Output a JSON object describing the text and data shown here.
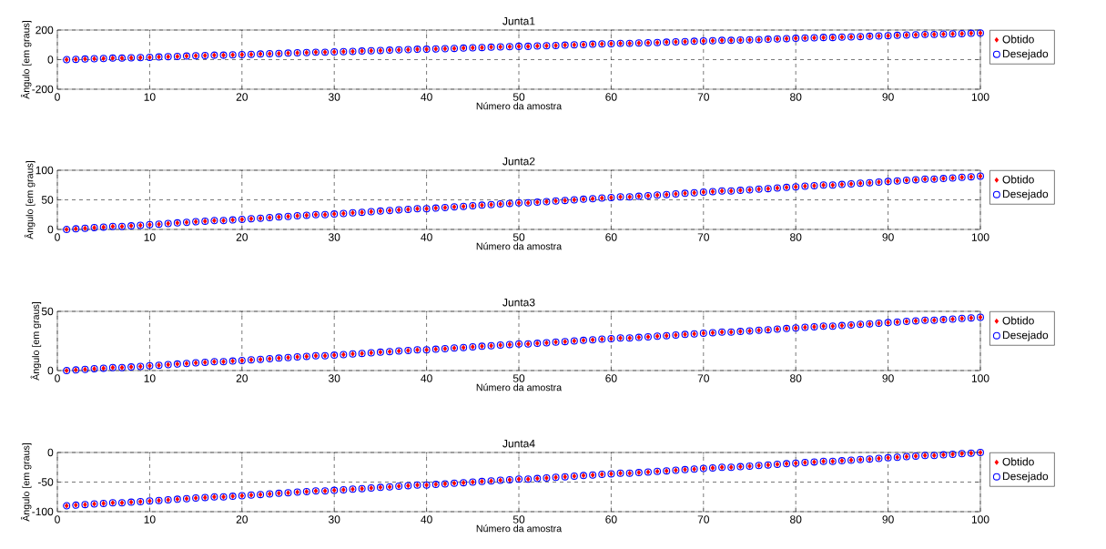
{
  "chart_data": [
    {
      "type": "scatter",
      "title": "Junta1",
      "xlabel": "Número da amostra",
      "ylabel": "Ângulo [em graus]",
      "xlim": [
        0,
        100
      ],
      "xticks": [
        0,
        10,
        20,
        30,
        40,
        50,
        60,
        70,
        80,
        90,
        100
      ],
      "ylim": [
        -200,
        200
      ],
      "yticks": [
        -200,
        0,
        200
      ],
      "grid": true,
      "legend": "right",
      "x": [
        1,
        2,
        3,
        4,
        5,
        6,
        7,
        8,
        9,
        10,
        11,
        12,
        13,
        14,
        15,
        16,
        17,
        18,
        19,
        20,
        21,
        22,
        23,
        24,
        25,
        26,
        27,
        28,
        29,
        30,
        31,
        32,
        33,
        34,
        35,
        36,
        37,
        38,
        39,
        40,
        41,
        42,
        43,
        44,
        45,
        46,
        47,
        48,
        49,
        50,
        51,
        52,
        53,
        54,
        55,
        56,
        57,
        58,
        59,
        60,
        61,
        62,
        63,
        64,
        65,
        66,
        67,
        68,
        69,
        70,
        71,
        72,
        73,
        74,
        75,
        76,
        77,
        78,
        79,
        80,
        81,
        82,
        83,
        84,
        85,
        86,
        87,
        88,
        89,
        90,
        91,
        92,
        93,
        94,
        95,
        96,
        97,
        98,
        99,
        100
      ],
      "series": [
        {
          "name": "Obtido",
          "color": "#ff0000",
          "marker": "diamond",
          "values": [
            0,
            2,
            4,
            6,
            8,
            10,
            10,
            12,
            14,
            16,
            18,
            20,
            22,
            24,
            26,
            28,
            30,
            30,
            32,
            34,
            36,
            38,
            40,
            42,
            44,
            46,
            48,
            50,
            50,
            52,
            54,
            56,
            58,
            60,
            62,
            64,
            66,
            68,
            70,
            70,
            72,
            74,
            76,
            78,
            80,
            82,
            84,
            86,
            88,
            90,
            90,
            92,
            94,
            96,
            98,
            100,
            102,
            104,
            106,
            108,
            110,
            110,
            112,
            114,
            116,
            118,
            120,
            122,
            124,
            126,
            128,
            130,
            130,
            132,
            134,
            136,
            138,
            140,
            142,
            144,
            146,
            148,
            150,
            150,
            152,
            154,
            156,
            158,
            160,
            162,
            164,
            166,
            168,
            170,
            170,
            172,
            174,
            176,
            178,
            180
          ]
        },
        {
          "name": "Desejado",
          "color": "#0000ff",
          "marker": "circle",
          "values": [
            0,
            2,
            4,
            6,
            8,
            10,
            10,
            12,
            14,
            16,
            18,
            20,
            22,
            24,
            26,
            28,
            30,
            30,
            32,
            34,
            36,
            38,
            40,
            42,
            44,
            46,
            48,
            50,
            50,
            52,
            54,
            56,
            58,
            60,
            62,
            64,
            66,
            68,
            70,
            70,
            72,
            74,
            76,
            78,
            80,
            82,
            84,
            86,
            88,
            90,
            90,
            92,
            94,
            96,
            98,
            100,
            102,
            104,
            106,
            108,
            110,
            110,
            112,
            114,
            116,
            118,
            120,
            122,
            124,
            126,
            128,
            130,
            130,
            132,
            134,
            136,
            138,
            140,
            142,
            144,
            146,
            148,
            150,
            150,
            152,
            154,
            156,
            158,
            160,
            162,
            164,
            166,
            168,
            170,
            170,
            172,
            174,
            176,
            178,
            180
          ]
        }
      ]
    },
    {
      "type": "scatter",
      "title": "Junta2",
      "xlabel": "Número da amostra",
      "ylabel": "Ângulo [em graus]",
      "xlim": [
        0,
        100
      ],
      "xticks": [
        0,
        10,
        20,
        30,
        40,
        50,
        60,
        70,
        80,
        90,
        100
      ],
      "ylim": [
        0,
        100
      ],
      "yticks": [
        0,
        50,
        100
      ],
      "grid": true,
      "legend": "right",
      "x": [
        1,
        2,
        3,
        4,
        5,
        6,
        7,
        8,
        9,
        10,
        11,
        12,
        13,
        14,
        15,
        16,
        17,
        18,
        19,
        20,
        21,
        22,
        23,
        24,
        25,
        26,
        27,
        28,
        29,
        30,
        31,
        32,
        33,
        34,
        35,
        36,
        37,
        38,
        39,
        40,
        41,
        42,
        43,
        44,
        45,
        46,
        47,
        48,
        49,
        50,
        51,
        52,
        53,
        54,
        55,
        56,
        57,
        58,
        59,
        60,
        61,
        62,
        63,
        64,
        65,
        66,
        67,
        68,
        69,
        70,
        71,
        72,
        73,
        74,
        75,
        76,
        77,
        78,
        79,
        80,
        81,
        82,
        83,
        84,
        85,
        86,
        87,
        88,
        89,
        90,
        91,
        92,
        93,
        94,
        95,
        96,
        97,
        98,
        99,
        100
      ],
      "series": [
        {
          "name": "Obtido",
          "color": "#ff0000",
          "marker": "diamond",
          "values": [
            0,
            1,
            2,
            3,
            4,
            5,
            5,
            6,
            7,
            8,
            9,
            10,
            11,
            12,
            13,
            14,
            15,
            15,
            16,
            17,
            18,
            19,
            20,
            21,
            22,
            23,
            24,
            25,
            25,
            26,
            27,
            28,
            29,
            30,
            31,
            32,
            33,
            34,
            35,
            35,
            36,
            37,
            38,
            39,
            40,
            41,
            42,
            43,
            44,
            45,
            45,
            46,
            47,
            48,
            49,
            50,
            51,
            52,
            53,
            54,
            55,
            55,
            56,
            57,
            58,
            59,
            60,
            61,
            62,
            63,
            64,
            65,
            65,
            66,
            67,
            68,
            69,
            70,
            71,
            72,
            73,
            74,
            75,
            75,
            76,
            77,
            78,
            79,
            80,
            81,
            82,
            83,
            84,
            85,
            85,
            86,
            87,
            88,
            89,
            90
          ]
        },
        {
          "name": "Desejado",
          "color": "#0000ff",
          "marker": "circle",
          "values": [
            0,
            1,
            2,
            3,
            4,
            5,
            5,
            6,
            7,
            8,
            9,
            10,
            11,
            12,
            13,
            14,
            15,
            15,
            16,
            17,
            18,
            19,
            20,
            21,
            22,
            23,
            24,
            25,
            25,
            26,
            27,
            28,
            29,
            30,
            31,
            32,
            33,
            34,
            35,
            35,
            36,
            37,
            38,
            39,
            40,
            41,
            42,
            43,
            44,
            45,
            45,
            46,
            47,
            48,
            49,
            50,
            51,
            52,
            53,
            54,
            55,
            55,
            56,
            57,
            58,
            59,
            60,
            61,
            62,
            63,
            64,
            65,
            65,
            66,
            67,
            68,
            69,
            70,
            71,
            72,
            73,
            74,
            75,
            75,
            76,
            77,
            78,
            79,
            80,
            81,
            82,
            83,
            84,
            85,
            85,
            86,
            87,
            88,
            89,
            90
          ]
        }
      ]
    },
    {
      "type": "scatter",
      "title": "Junta3",
      "xlabel": "Número da amostra",
      "ylabel": "Ângulo [em graus]",
      "xlim": [
        0,
        100
      ],
      "xticks": [
        0,
        10,
        20,
        30,
        40,
        50,
        60,
        70,
        80,
        90,
        100
      ],
      "ylim": [
        0,
        50
      ],
      "yticks": [
        0,
        50
      ],
      "grid": true,
      "legend": "right",
      "x": [
        1,
        2,
        3,
        4,
        5,
        6,
        7,
        8,
        9,
        10,
        11,
        12,
        13,
        14,
        15,
        16,
        17,
        18,
        19,
        20,
        21,
        22,
        23,
        24,
        25,
        26,
        27,
        28,
        29,
        30,
        31,
        32,
        33,
        34,
        35,
        36,
        37,
        38,
        39,
        40,
        41,
        42,
        43,
        44,
        45,
        46,
        47,
        48,
        49,
        50,
        51,
        52,
        53,
        54,
        55,
        56,
        57,
        58,
        59,
        60,
        61,
        62,
        63,
        64,
        65,
        66,
        67,
        68,
        69,
        70,
        71,
        72,
        73,
        74,
        75,
        76,
        77,
        78,
        79,
        80,
        81,
        82,
        83,
        84,
        85,
        86,
        87,
        88,
        89,
        90,
        91,
        92,
        93,
        94,
        95,
        96,
        97,
        98,
        99,
        100
      ],
      "series": [
        {
          "name": "Obtido",
          "color": "#ff0000",
          "marker": "diamond",
          "values": [
            0,
            0.5,
            1,
            1.5,
            2,
            2.5,
            2.5,
            3,
            3.5,
            4,
            4.5,
            5,
            5.5,
            6,
            6.5,
            7,
            7.5,
            7.5,
            8,
            8.5,
            9,
            9.5,
            10,
            10.5,
            11,
            11.5,
            12,
            12.5,
            12.5,
            13,
            13.5,
            14,
            14.5,
            15,
            15.5,
            16,
            16.5,
            17,
            17.5,
            17.5,
            18,
            18.5,
            19,
            19.5,
            20,
            20.5,
            21,
            21.5,
            22,
            22.5,
            22.5,
            23,
            23.5,
            24,
            24.5,
            25,
            25.5,
            26,
            26.5,
            27,
            27.5,
            27.5,
            28,
            28.5,
            29,
            29.5,
            30,
            30.5,
            31,
            31.5,
            32,
            32.5,
            32.5,
            33,
            33.5,
            34,
            34.5,
            35,
            35.5,
            36,
            36.5,
            37,
            37.5,
            37.5,
            38,
            38.5,
            39,
            39.5,
            40,
            40.5,
            41,
            41.5,
            42,
            42.5,
            42.5,
            43,
            43.5,
            44,
            44.5,
            45
          ]
        },
        {
          "name": "Desejado",
          "color": "#0000ff",
          "marker": "circle",
          "values": [
            0,
            0.5,
            1,
            1.5,
            2,
            2.5,
            2.5,
            3,
            3.5,
            4,
            4.5,
            5,
            5.5,
            6,
            6.5,
            7,
            7.5,
            7.5,
            8,
            8.5,
            9,
            9.5,
            10,
            10.5,
            11,
            11.5,
            12,
            12.5,
            12.5,
            13,
            13.5,
            14,
            14.5,
            15,
            15.5,
            16,
            16.5,
            17,
            17.5,
            17.5,
            18,
            18.5,
            19,
            19.5,
            20,
            20.5,
            21,
            21.5,
            22,
            22.5,
            22.5,
            23,
            23.5,
            24,
            24.5,
            25,
            25.5,
            26,
            26.5,
            27,
            27.5,
            27.5,
            28,
            28.5,
            29,
            29.5,
            30,
            30.5,
            31,
            31.5,
            32,
            32.5,
            32.5,
            33,
            33.5,
            34,
            34.5,
            35,
            35.5,
            36,
            36.5,
            37,
            37.5,
            37.5,
            38,
            38.5,
            39,
            39.5,
            40,
            40.5,
            41,
            41.5,
            42,
            42.5,
            42.5,
            43,
            43.5,
            44,
            44.5,
            45
          ]
        }
      ]
    },
    {
      "type": "scatter",
      "title": "Junta4",
      "xlabel": "Número da amostra",
      "ylabel": "Ângulo [em graus]",
      "xlim": [
        0,
        100
      ],
      "xticks": [
        0,
        10,
        20,
        30,
        40,
        50,
        60,
        70,
        80,
        90,
        100
      ],
      "ylim": [
        -100,
        0
      ],
      "yticks": [
        -100,
        -50,
        0
      ],
      "grid": true,
      "legend": "right",
      "x": [
        1,
        2,
        3,
        4,
        5,
        6,
        7,
        8,
        9,
        10,
        11,
        12,
        13,
        14,
        15,
        16,
        17,
        18,
        19,
        20,
        21,
        22,
        23,
        24,
        25,
        26,
        27,
        28,
        29,
        30,
        31,
        32,
        33,
        34,
        35,
        36,
        37,
        38,
        39,
        40,
        41,
        42,
        43,
        44,
        45,
        46,
        47,
        48,
        49,
        50,
        51,
        52,
        53,
        54,
        55,
        56,
        57,
        58,
        59,
        60,
        61,
        62,
        63,
        64,
        65,
        66,
        67,
        68,
        69,
        70,
        71,
        72,
        73,
        74,
        75,
        76,
        77,
        78,
        79,
        80,
        81,
        82,
        83,
        84,
        85,
        86,
        87,
        88,
        89,
        90,
        91,
        92,
        93,
        94,
        95,
        96,
        97,
        98,
        99,
        100
      ],
      "series": [
        {
          "name": "Obtido",
          "color": "#ff0000",
          "marker": "diamond",
          "values": [
            -90,
            -89,
            -88,
            -87,
            -86,
            -85,
            -85,
            -84,
            -83,
            -82,
            -81,
            -80,
            -79,
            -78,
            -77,
            -76,
            -75,
            -75,
            -74,
            -73,
            -72,
            -71,
            -70,
            -69,
            -68,
            -67,
            -66,
            -65,
            -65,
            -64,
            -63,
            -62,
            -61,
            -60,
            -59,
            -58,
            -57,
            -56,
            -55,
            -55,
            -54,
            -53,
            -52,
            -51,
            -50,
            -49,
            -48,
            -47,
            -46,
            -45,
            -45,
            -44,
            -43,
            -42,
            -41,
            -40,
            -39,
            -38,
            -37,
            -36,
            -35,
            -35,
            -34,
            -33,
            -32,
            -31,
            -30,
            -29,
            -28,
            -27,
            -26,
            -25,
            -25,
            -24,
            -23,
            -22,
            -21,
            -20,
            -19,
            -18,
            -17,
            -16,
            -15,
            -15,
            -14,
            -13,
            -12,
            -11,
            -10,
            -9,
            -8,
            -7,
            -6,
            -5,
            -5,
            -4,
            -3,
            -2,
            -1,
            0
          ]
        },
        {
          "name": "Desejado",
          "color": "#0000ff",
          "marker": "circle",
          "values": [
            -90,
            -89,
            -88,
            -87,
            -86,
            -85,
            -85,
            -84,
            -83,
            -82,
            -81,
            -80,
            -79,
            -78,
            -77,
            -76,
            -75,
            -75,
            -74,
            -73,
            -72,
            -71,
            -70,
            -69,
            -68,
            -67,
            -66,
            -65,
            -65,
            -64,
            -63,
            -62,
            -61,
            -60,
            -59,
            -58,
            -57,
            -56,
            -55,
            -55,
            -54,
            -53,
            -52,
            -51,
            -50,
            -49,
            -48,
            -47,
            -46,
            -45,
            -45,
            -44,
            -43,
            -42,
            -41,
            -40,
            -39,
            -38,
            -37,
            -36,
            -35,
            -35,
            -34,
            -33,
            -32,
            -31,
            -30,
            -29,
            -28,
            -27,
            -26,
            -25,
            -25,
            -24,
            -23,
            -22,
            -21,
            -20,
            -19,
            -18,
            -17,
            -16,
            -15,
            -15,
            -14,
            -13,
            -12,
            -11,
            -10,
            -9,
            -8,
            -7,
            -6,
            -5,
            -5,
            -4,
            -3,
            -2,
            -1,
            0
          ]
        }
      ]
    }
  ]
}
